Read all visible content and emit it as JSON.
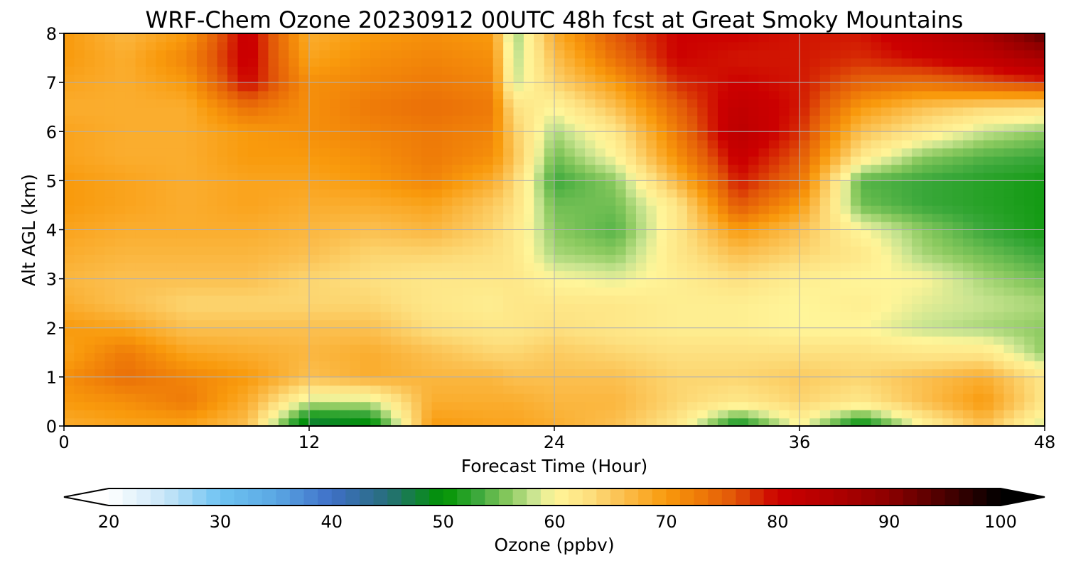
{
  "chart_data": {
    "type": "heatmap",
    "title": "WRF-Chem Ozone  20230912 00UTC 48h fcst at Great Smoky Mountains",
    "xlabel": "Forecast Time (Hour)",
    "ylabel": "Alt AGL (km)",
    "xlim": [
      0,
      48
    ],
    "ylim": [
      0,
      8
    ],
    "x_ticks": [
      0,
      12,
      24,
      36,
      48
    ],
    "y_ticks": [
      0,
      1,
      2,
      3,
      4,
      5,
      6,
      7,
      8
    ],
    "grid": true,
    "colorbar": {
      "label": "Ozone  (ppbv)",
      "min": 20,
      "max": 100,
      "ticks": [
        20,
        30,
        40,
        50,
        60,
        70,
        80,
        90,
        100
      ],
      "extend": "both",
      "stops": [
        {
          "v": 20,
          "c": "#ffffff"
        },
        {
          "v": 25,
          "c": "#c8e6f8"
        },
        {
          "v": 30,
          "c": "#6ec3f2"
        },
        {
          "v": 35,
          "c": "#5aa7e3"
        },
        {
          "v": 40,
          "c": "#3f6fc7"
        },
        {
          "v": 45,
          "c": "#276e7a"
        },
        {
          "v": 50,
          "c": "#009400"
        },
        {
          "v": 53,
          "c": "#3aa83a"
        },
        {
          "v": 56,
          "c": "#8cca60"
        },
        {
          "v": 58,
          "c": "#c8e490"
        },
        {
          "v": 60,
          "c": "#fff599"
        },
        {
          "v": 63,
          "c": "#fde080"
        },
        {
          "v": 66,
          "c": "#fbc050"
        },
        {
          "v": 70,
          "c": "#f99a0c"
        },
        {
          "v": 73,
          "c": "#ee7a08"
        },
        {
          "v": 76,
          "c": "#e25808"
        },
        {
          "v": 80,
          "c": "#cc0000"
        },
        {
          "v": 85,
          "c": "#b00000"
        },
        {
          "v": 90,
          "c": "#8c0000"
        },
        {
          "v": 95,
          "c": "#4a0000"
        },
        {
          "v": 100,
          "c": "#000000"
        }
      ]
    },
    "z_hours": [
      0,
      3,
      6,
      9,
      12,
      15,
      18,
      21,
      22,
      24,
      27,
      30,
      33,
      36,
      39,
      42,
      45,
      48
    ],
    "z_alts": [
      0,
      0.5,
      1,
      1.5,
      2,
      2.5,
      3,
      3.5,
      4,
      4.5,
      5,
      5.5,
      6,
      6.5,
      7,
      7.5,
      8
    ],
    "z_values": [
      [
        68,
        69,
        69,
        66,
        46,
        48,
        70,
        69,
        69,
        68,
        66,
        62,
        50,
        60,
        49,
        60,
        66,
        58
      ],
      [
        70,
        71,
        73,
        68,
        58,
        58,
        68,
        68,
        68,
        67,
        67,
        64,
        62,
        64,
        62,
        66,
        70,
        62
      ],
      [
        71,
        74,
        72,
        70,
        66,
        68,
        67,
        67,
        66,
        66,
        66,
        64,
        64,
        65,
        64,
        66,
        68,
        62
      ],
      [
        69,
        73,
        69,
        68,
        67,
        68,
        66,
        64,
        64,
        65,
        64,
        63,
        63,
        63,
        63,
        62,
        62,
        56
      ],
      [
        70,
        69,
        66,
        66,
        66,
        66,
        63,
        62,
        62,
        63,
        62,
        61,
        61,
        60,
        60,
        58,
        57,
        56
      ],
      [
        68,
        66,
        64,
        64,
        64,
        64,
        62,
        61,
        62,
        62,
        62,
        61,
        61,
        60,
        61,
        59,
        58,
        57
      ],
      [
        67,
        66,
        66,
        66,
        64,
        63,
        62,
        62,
        62,
        60,
        59,
        61,
        63,
        61,
        60,
        60,
        57,
        55
      ],
      [
        68,
        67,
        67,
        67,
        66,
        64,
        64,
        63,
        62,
        57,
        56,
        62,
        66,
        64,
        62,
        57,
        55,
        53
      ],
      [
        69,
        68,
        68,
        68,
        67,
        66,
        67,
        64,
        62,
        56,
        54,
        62,
        70,
        66,
        60,
        56,
        53,
        51
      ],
      [
        70,
        69,
        68,
        69,
        68,
        68,
        69,
        65,
        63,
        55,
        55,
        62,
        76,
        70,
        55,
        53,
        52,
        51
      ],
      [
        70,
        69,
        68,
        69,
        69,
        70,
        72,
        68,
        64,
        53,
        56,
        67,
        79,
        74,
        54,
        53,
        52,
        51
      ],
      [
        69,
        68,
        68,
        70,
        70,
        71,
        73,
        71,
        66,
        55,
        60,
        71,
        81,
        76,
        62,
        56,
        54,
        53
      ],
      [
        69,
        68,
        68,
        70,
        71,
        72,
        73,
        72,
        65,
        57,
        62,
        73,
        83,
        78,
        66,
        62,
        58,
        56
      ],
      [
        68,
        68,
        68,
        74,
        71,
        73,
        74,
        73,
        63,
        60,
        66,
        75,
        82,
        79,
        70,
        66,
        64,
        63
      ],
      [
        69,
        68,
        70,
        80,
        71,
        72,
        73,
        72,
        58,
        64,
        70,
        78,
        80,
        79,
        75,
        74,
        76,
        78
      ],
      [
        70,
        68,
        72,
        81,
        69,
        71,
        72,
        71,
        57,
        66,
        74,
        80,
        79,
        79,
        78,
        80,
        82,
        86
      ],
      [
        70,
        67,
        70,
        81,
        68,
        70,
        71,
        70,
        56,
        68,
        76,
        80,
        80,
        79,
        79,
        82,
        86,
        94
      ]
    ]
  }
}
